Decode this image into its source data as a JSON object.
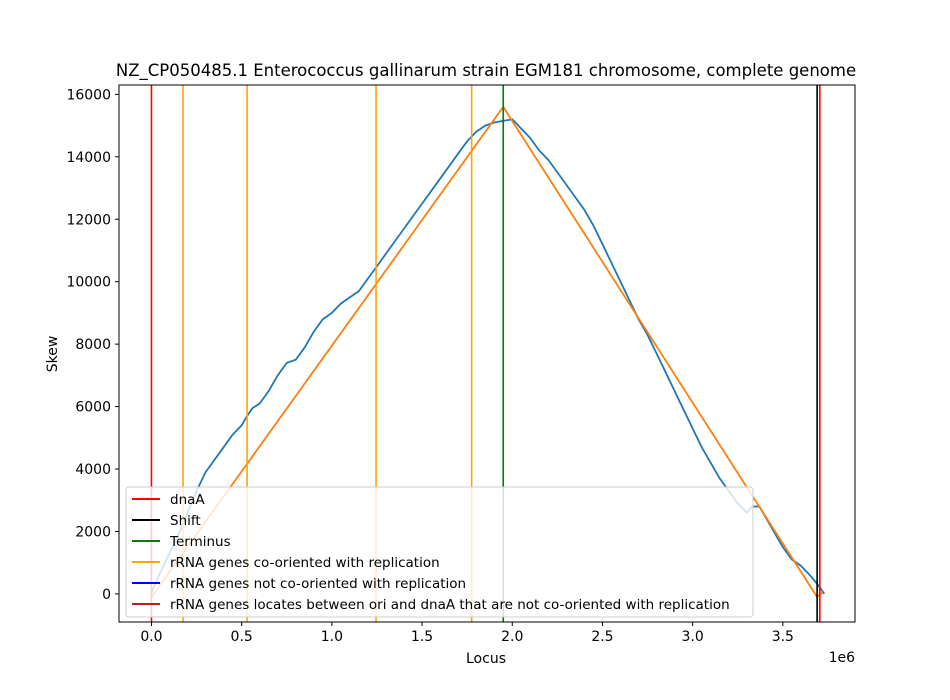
{
  "chart_data": {
    "type": "line",
    "title": "NZ_CP050485.1 Enterococcus gallinarum strain EGM181 chromosome, complete genome",
    "xlabel": "Locus",
    "ylabel": "Skew",
    "x_offset_label": "1e6",
    "xlim": [
      -180000,
      3900000
    ],
    "ylim": [
      -900,
      16300
    ],
    "x_ticks": [
      0,
      500000,
      1000000,
      1500000,
      2000000,
      2500000,
      3000000,
      3500000
    ],
    "x_tick_labels": [
      "0.0",
      "0.5",
      "1.0",
      "1.5",
      "2.0",
      "2.5",
      "3.0",
      "3.5"
    ],
    "y_ticks": [
      0,
      2000,
      4000,
      6000,
      8000,
      10000,
      12000,
      14000,
      16000
    ],
    "y_tick_labels": [
      "0",
      "2000",
      "4000",
      "6000",
      "8000",
      "10000",
      "12000",
      "14000",
      "16000"
    ],
    "grid": false,
    "legend_position": "lower-left",
    "colors": {
      "skew": "#1f77b4",
      "fit": "#ff7f0e",
      "dnaA": "#ff0000",
      "shift": "#000000",
      "terminus": "#008000",
      "rrna_co": "#ffa500",
      "rrna_not_co": "#0000ff",
      "rrna_between": "#b22222"
    },
    "skew_series": {
      "x": [
        0,
        50000,
        100000,
        150000,
        200000,
        250000,
        300000,
        350000,
        400000,
        450000,
        500000,
        530000,
        560000,
        600000,
        650000,
        700000,
        750000,
        800000,
        850000,
        900000,
        950000,
        1000000,
        1050000,
        1100000,
        1150000,
        1200000,
        1250000,
        1300000,
        1350000,
        1400000,
        1450000,
        1500000,
        1550000,
        1600000,
        1650000,
        1700000,
        1750000,
        1800000,
        1850000,
        1900000,
        1950000,
        2000000,
        2050000,
        2100000,
        2150000,
        2200000,
        2250000,
        2300000,
        2350000,
        2400000,
        2450000,
        2500000,
        2550000,
        2600000,
        2650000,
        2700000,
        2750000,
        2800000,
        2850000,
        2900000,
        2950000,
        3000000,
        3050000,
        3100000,
        3150000,
        3200000,
        3250000,
        3300000,
        3330000,
        3370000,
        3400000,
        3450000,
        3500000,
        3550000,
        3600000,
        3650000,
        3700000,
        3730000
      ],
      "y": [
        50,
        700,
        1300,
        1900,
        2600,
        3300,
        3900,
        4300,
        4700,
        5100,
        5400,
        5700,
        5950,
        6100,
        6500,
        7000,
        7400,
        7500,
        7900,
        8400,
        8800,
        9000,
        9300,
        9500,
        9700,
        10100,
        10500,
        10900,
        11300,
        11700,
        12100,
        12500,
        12900,
        13300,
        13700,
        14100,
        14500,
        14800,
        15000,
        15100,
        15150,
        15200,
        14900,
        14600,
        14200,
        13900,
        13500,
        13100,
        12700,
        12300,
        11800,
        11200,
        10600,
        10000,
        9400,
        8800,
        8300,
        7700,
        7100,
        6500,
        5900,
        5300,
        4700,
        4200,
        3700,
        3300,
        2900,
        2600,
        2800,
        2800,
        2500,
        2000,
        1500,
        1100,
        900,
        600,
        250,
        0
      ]
    },
    "fit_series": {
      "x": [
        0,
        1950000,
        3690000,
        3720000
      ],
      "y": [
        -100,
        15600,
        -100,
        50
      ]
    },
    "vlines": [
      {
        "x": 0,
        "kind": "dnaA"
      },
      {
        "x": 175000,
        "kind": "rrna_co"
      },
      {
        "x": 530000,
        "kind": "rrna_co"
      },
      {
        "x": 1245000,
        "kind": "rrna_co"
      },
      {
        "x": 1775000,
        "kind": "rrna_co"
      },
      {
        "x": 1950000,
        "kind": "terminus"
      },
      {
        "x": 3690000,
        "kind": "shift"
      },
      {
        "x": 3705000,
        "kind": "dnaA"
      }
    ],
    "legend": [
      {
        "label": "dnaA",
        "kind": "dnaA"
      },
      {
        "label": "Shift",
        "kind": "shift"
      },
      {
        "label": "Terminus",
        "kind": "terminus"
      },
      {
        "label": "rRNA genes co-oriented with replication",
        "kind": "rrna_co"
      },
      {
        "label": "rRNA genes not co-oriented with replication",
        "kind": "rrna_not_co"
      },
      {
        "label": "rRNA genes locates between ori and dnaA that are not co-oriented with replication",
        "kind": "rrna_between"
      }
    ]
  }
}
